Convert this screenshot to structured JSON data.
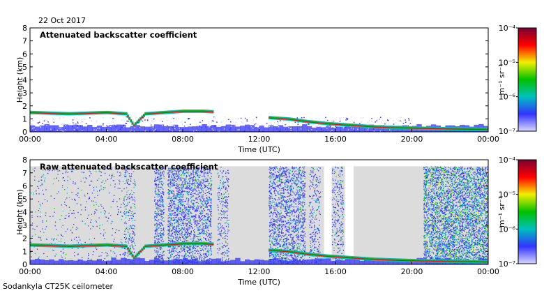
{
  "header": {
    "date": "22 Oct 2017"
  },
  "footer": {
    "caption": "Sodankyla CT25K ceilometer"
  },
  "colors": {
    "background": "#ffffff",
    "empty_bins": "#dcdcdc",
    "colormap": [
      "#d8d8ff",
      "#3333ff",
      "#00c0c0",
      "#00c000",
      "#f0f000",
      "#ff0000",
      "#7a0030"
    ]
  },
  "chart_data": [
    {
      "type": "heatmap",
      "title": "Attenuated backscatter coefficient",
      "xlabel": "Time (UTC)",
      "ylabel": "Height (km)",
      "x_ticks": [
        "00:00",
        "04:00",
        "08:00",
        "12:00",
        "16:00",
        "20:00",
        "00:00"
      ],
      "y_ticks": [
        0,
        1,
        2,
        3,
        4,
        5,
        6,
        7,
        8
      ],
      "xlim": [
        0,
        24
      ],
      "ylim": [
        0,
        8
      ],
      "colorbar": {
        "label": "m⁻¹ sr⁻¹",
        "scale": "log",
        "ticks": [
          "10⁻⁴",
          "10⁻⁵",
          "10⁻⁶",
          "10⁻⁷"
        ]
      },
      "cloud_base_height_km": [
        {
          "t": 0,
          "h": 1.5
        },
        {
          "t": 1,
          "h": 1.45
        },
        {
          "t": 2,
          "h": 1.4
        },
        {
          "t": 3,
          "h": 1.45
        },
        {
          "t": 4,
          "h": 1.5
        },
        {
          "t": 5,
          "h": 1.4
        },
        {
          "t": 5.4,
          "h": 0.5
        },
        {
          "t": 6,
          "h": 1.4
        },
        {
          "t": 7,
          "h": 1.5
        },
        {
          "t": 8,
          "h": 1.6
        },
        {
          "t": 9,
          "h": 1.6
        },
        {
          "t": 9.6,
          "h": 1.55
        },
        {
          "t": 12.5,
          "h": 1.1
        },
        {
          "t": 13.5,
          "h": 1.0
        },
        {
          "t": 14.5,
          "h": 0.8
        },
        {
          "t": 15.5,
          "h": 0.65
        },
        {
          "t": 16.5,
          "h": 0.55
        },
        {
          "t": 18,
          "h": 0.4
        },
        {
          "t": 20,
          "h": 0.3
        },
        {
          "t": 22,
          "h": 0.25
        },
        {
          "t": 24,
          "h": 0.2
        }
      ],
      "surface_layer_top_km": 0.4
    },
    {
      "type": "heatmap",
      "title": "Raw attenuated backscatter coefficient",
      "xlabel": "Time (UTC)",
      "ylabel": "Height (km)",
      "x_ticks": [
        "00:00",
        "04:00",
        "08:00",
        "12:00",
        "16:00",
        "20:00",
        "00:00"
      ],
      "y_ticks": [
        0,
        1,
        2,
        3,
        4,
        5,
        6,
        7,
        8
      ],
      "xlim": [
        0,
        24
      ],
      "ylim": [
        0,
        8
      ],
      "data_top_km": 7.5,
      "colorbar": {
        "label": "m⁻¹ sr⁻¹",
        "scale": "log",
        "ticks": [
          "10⁻⁴",
          "10⁻⁵",
          "10⁻⁶",
          "10⁻⁷"
        ]
      },
      "noise_segments_hours": [
        {
          "start": 0,
          "end": 4.9,
          "level": "low"
        },
        {
          "start": 4.9,
          "end": 5.5,
          "level": "medium"
        },
        {
          "start": 6.5,
          "end": 7.0,
          "level": "high"
        },
        {
          "start": 7.2,
          "end": 9.5,
          "level": "high"
        },
        {
          "start": 9.8,
          "end": 10.4,
          "level": "medium"
        },
        {
          "start": 12.5,
          "end": 14.4,
          "level": "high"
        },
        {
          "start": 14.6,
          "end": 15.2,
          "level": "medium"
        },
        {
          "start": 15.8,
          "end": 16.4,
          "level": "medium"
        },
        {
          "start": 20.6,
          "end": 24,
          "level": "very-high"
        }
      ],
      "clear_gaps_hours": [
        {
          "start": 15.4,
          "end": 15.8
        },
        {
          "start": 16.5,
          "end": 16.95
        }
      ]
    }
  ]
}
